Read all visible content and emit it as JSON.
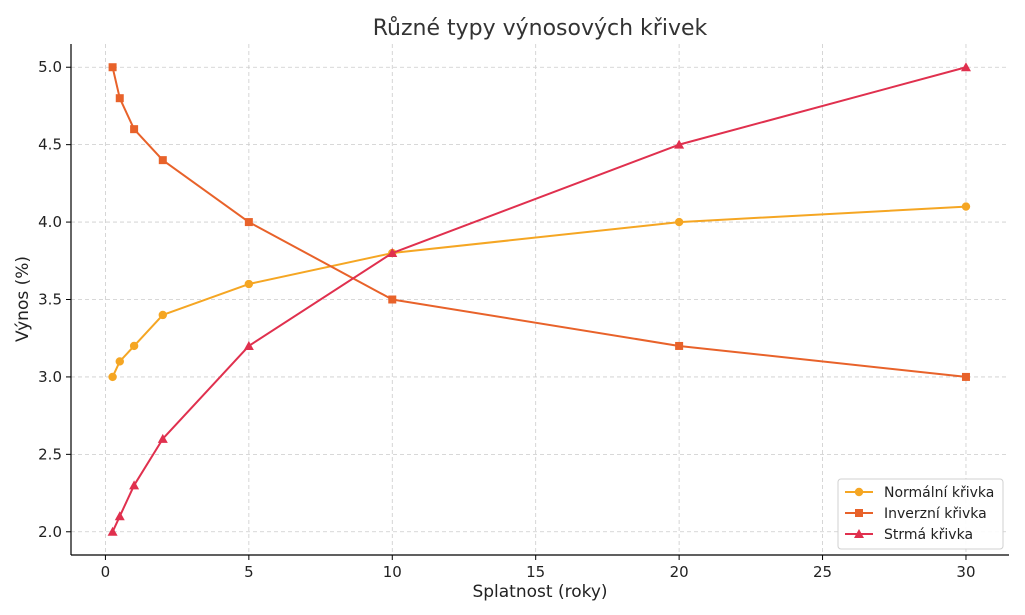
{
  "chart_data": {
    "type": "line",
    "title": "Různé typy výnosových křivek",
    "xlabel": "Splatnost (roky)",
    "ylabel": "Výnos (%)",
    "xlim": [
      -1.2,
      31.5
    ],
    "ylim": [
      1.85,
      5.15
    ],
    "xticks": [
      0,
      5,
      10,
      15,
      20,
      25,
      30
    ],
    "xtick_labels": [
      "0",
      "5",
      "10",
      "15",
      "20",
      "25",
      "30"
    ],
    "yticks": [
      2.0,
      2.5,
      3.0,
      3.5,
      4.0,
      4.5,
      5.0
    ],
    "ytick_labels": [
      "2.0",
      "2.5",
      "3.0",
      "3.5",
      "4.0",
      "4.5",
      "5.0"
    ],
    "grid": true,
    "legend_position": "bottom-right",
    "x": [
      0.25,
      0.5,
      1,
      2,
      5,
      10,
      20,
      30
    ],
    "series": [
      {
        "name": "Normální křivka",
        "color": "#f5a623",
        "marker": "circle",
        "values": [
          3.0,
          3.1,
          3.2,
          3.4,
          3.6,
          3.8,
          4.0,
          4.1
        ]
      },
      {
        "name": "Inverzní křivka",
        "color": "#e8622a",
        "marker": "square",
        "values": [
          5.0,
          4.8,
          4.6,
          4.4,
          4.0,
          3.5,
          3.2,
          3.0
        ]
      },
      {
        "name": "Strmá křivka",
        "color": "#e0304e",
        "marker": "triangle",
        "values": [
          2.0,
          2.1,
          2.3,
          2.6,
          3.2,
          3.8,
          4.5,
          5.0
        ]
      }
    ]
  }
}
